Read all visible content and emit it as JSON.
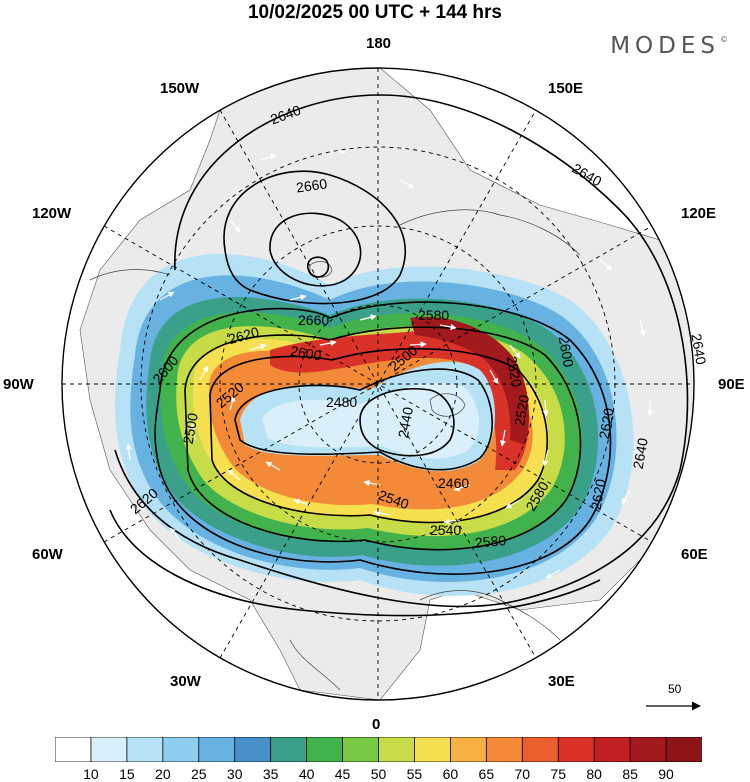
{
  "title": "10/02/2025  00 UTC  + 144 hrs",
  "brand": "MODES",
  "brand_mark": "©",
  "longitude_labels": {
    "lon_180": "180",
    "lon_150w": "150W",
    "lon_150e": "150E",
    "lon_120w": "120W",
    "lon_120e": "120E",
    "lon_90w": "90W",
    "lon_90e": "90E",
    "lon_60w": "60W",
    "lon_60e": "60E",
    "lon_30w": "30W",
    "lon_30e": "30E",
    "lon_0": "0"
  },
  "reference_vector": {
    "label": "50"
  },
  "contour_labels": [
    "2640",
    "2660",
    "2640",
    "2660",
    "2620",
    "2600",
    "2600",
    "2520",
    "2580",
    "2500",
    "2480",
    "2440",
    "2520",
    "2600",
    "2540",
    "2500",
    "2460",
    "2540",
    "2580",
    "2620",
    "2640",
    "2620",
    "2580",
    "2620",
    "2640",
    "2520"
  ],
  "colorbar": {
    "ticks": [
      "10",
      "15",
      "20",
      "25",
      "30",
      "35",
      "40",
      "45",
      "50",
      "55",
      "60",
      "65",
      "70",
      "75",
      "80",
      "85",
      "90"
    ],
    "colors": [
      "#ffffff",
      "#d9f0fb",
      "#b7e2f6",
      "#8fcdee",
      "#67b2e1",
      "#4a90c8",
      "#3aa08a",
      "#42b34c",
      "#7ac943",
      "#c8dc48",
      "#f6e04f",
      "#f7b143",
      "#f28a37",
      "#eb5e2e",
      "#d93329",
      "#c21f24",
      "#a31a1e",
      "#8c1518"
    ]
  }
}
